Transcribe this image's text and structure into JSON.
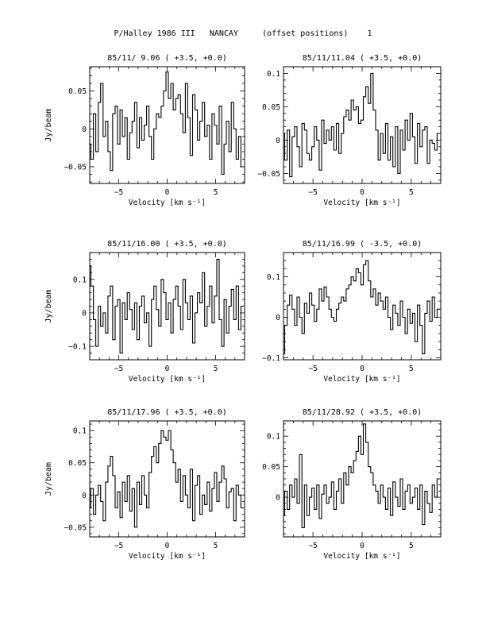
{
  "page_title": "P/Halley 1986 III   NANCAY     (offset positions)    1",
  "chart_data": [
    {
      "type": "line",
      "title": "85/11/ 9.06  ( +3.5, +0.0)",
      "xlabel": "Velocity [km s⁻¹]",
      "ylabel": "Jy/beam",
      "xlim": [
        -8,
        8
      ],
      "ylim": [
        -0.072,
        0.082
      ],
      "xticks": [
        -5,
        0,
        5
      ],
      "yticks": [
        -0.05,
        0,
        0.05
      ],
      "ytick_labels": [
        "−0.05",
        "0",
        "0.05"
      ],
      "series": [
        {
          "x": [
            -8.0,
            -7.75,
            -7.5,
            -7.25,
            -7.0,
            -6.75,
            -6.5,
            -6.25,
            -6.0,
            -5.75,
            -5.5,
            -5.25,
            -5.0,
            -4.75,
            -4.5,
            -4.25,
            -4.0,
            -3.75,
            -3.5,
            -3.25,
            -3.0,
            -2.75,
            -2.5,
            -2.25,
            -2.0,
            -1.75,
            -1.5,
            -1.25,
            -1.0,
            -0.75,
            -0.5,
            -0.25,
            0.0,
            0.25,
            0.5,
            0.75,
            1.0,
            1.25,
            1.5,
            1.75,
            2.0,
            2.25,
            2.5,
            2.75,
            3.0,
            3.25,
            3.5,
            3.75,
            4.0,
            4.25,
            4.5,
            4.75,
            5.0,
            5.25,
            5.5,
            5.75,
            6.0,
            6.25,
            6.5,
            6.75,
            7.0,
            7.25,
            7.5,
            7.75
          ],
          "y": [
            -0.02,
            -0.04,
            0.02,
            -0.03,
            0.035,
            0.06,
            -0.01,
            0.01,
            -0.03,
            -0.055,
            0.02,
            0.03,
            -0.02,
            0.025,
            -0.01,
            0.015,
            -0.04,
            -0.005,
            0.01,
            0.035,
            -0.025,
            0.015,
            -0.015,
            0.005,
            0.03,
            -0.01,
            -0.04,
            0.0,
            0.02,
            0.015,
            0.03,
            0.05,
            0.075,
            0.04,
            0.06,
            0.025,
            0.04,
            0.045,
            0.02,
            -0.005,
            0.06,
            0.015,
            -0.035,
            0.045,
            0.025,
            -0.015,
            0.01,
            0.035,
            -0.01,
            0.005,
            -0.04,
            0.02,
            0.005,
            -0.02,
            0.03,
            -0.06,
            -0.02,
            0.01,
            -0.03,
            0.035,
            0.0,
            -0.04,
            -0.01,
            -0.05
          ]
        }
      ]
    },
    {
      "type": "line",
      "title": "85/11/11.04  ( +3.5, +0.0)",
      "xlabel": "Velocity [km s⁻¹]",
      "ylabel": "",
      "xlim": [
        -8,
        8
      ],
      "ylim": [
        -0.065,
        0.11
      ],
      "xticks": [
        -5,
        0,
        5
      ],
      "yticks": [
        -0.05,
        0,
        0.05,
        0.1
      ],
      "ytick_labels": [
        "−0.05",
        "0",
        "0.05",
        "0.1"
      ],
      "series": [
        {
          "x": [
            -8.0,
            -7.75,
            -7.5,
            -7.25,
            -7.0,
            -6.75,
            -6.5,
            -6.25,
            -6.0,
            -5.75,
            -5.5,
            -5.25,
            -5.0,
            -4.75,
            -4.5,
            -4.25,
            -4.0,
            -3.75,
            -3.5,
            -3.25,
            -3.0,
            -2.75,
            -2.5,
            -2.25,
            -2.0,
            -1.75,
            -1.5,
            -1.25,
            -1.0,
            -0.75,
            -0.5,
            -0.25,
            0.0,
            0.25,
            0.5,
            0.75,
            1.0,
            1.25,
            1.5,
            1.75,
            2.0,
            2.25,
            2.5,
            2.75,
            3.0,
            3.25,
            3.5,
            3.75,
            4.0,
            4.25,
            4.5,
            4.75,
            5.0,
            5.25,
            5.5,
            5.75,
            6.0,
            6.25,
            6.5,
            6.75,
            7.0,
            7.25,
            7.5,
            7.75
          ],
          "y": [
            0.01,
            -0.03,
            0.015,
            -0.055,
            0.005,
            0.02,
            -0.01,
            -0.04,
            0.025,
            0.015,
            -0.02,
            -0.03,
            -0.01,
            0.02,
            0.0,
            -0.045,
            0.03,
            -0.005,
            0.015,
            0.0,
            0.02,
            -0.015,
            0.025,
            -0.02,
            0.01,
            0.035,
            0.045,
            0.03,
            0.06,
            0.045,
            0.05,
            0.025,
            0.03,
            0.065,
            0.08,
            0.055,
            0.1,
            0.045,
            0.015,
            -0.03,
            0.01,
            -0.02,
            0.025,
            -0.03,
            0.005,
            -0.04,
            0.02,
            -0.05,
            0.015,
            -0.015,
            0.03,
            0.0,
            0.04,
            0.005,
            -0.035,
            0.025,
            -0.01,
            0.015,
            0.02,
            -0.035,
            0.0,
            -0.005,
            -0.015,
            0.01
          ]
        }
      ]
    },
    {
      "type": "line",
      "title": "85/11/16.00  ( +3.5, +0.0)",
      "xlabel": "Velocity [km s⁻¹]",
      "ylabel": "Jy/beam",
      "xlim": [
        -8,
        8
      ],
      "ylim": [
        -0.14,
        0.18
      ],
      "xticks": [
        -5,
        0,
        5
      ],
      "yticks": [
        -0.1,
        0,
        0.1
      ],
      "ytick_labels": [
        "−0.1",
        "0",
        "0.1"
      ],
      "series": [
        {
          "x": [
            -8.0,
            -7.75,
            -7.5,
            -7.25,
            -7.0,
            -6.75,
            -6.5,
            -6.25,
            -6.0,
            -5.75,
            -5.5,
            -5.25,
            -5.0,
            -4.75,
            -4.5,
            -4.25,
            -4.0,
            -3.75,
            -3.5,
            -3.25,
            -3.0,
            -2.75,
            -2.5,
            -2.25,
            -2.0,
            -1.75,
            -1.5,
            -1.25,
            -1.0,
            -0.75,
            -0.5,
            -0.25,
            0.0,
            0.25,
            0.5,
            0.75,
            1.0,
            1.25,
            1.5,
            1.75,
            2.0,
            2.25,
            2.5,
            2.75,
            3.0,
            3.25,
            3.5,
            3.75,
            4.0,
            4.25,
            4.5,
            4.75,
            5.0,
            5.25,
            5.5,
            5.75,
            6.0,
            6.25,
            6.5,
            6.75,
            7.0,
            7.25,
            7.5,
            7.75
          ],
          "y": [
            0.14,
            0.08,
            -0.02,
            -0.1,
            0.02,
            -0.04,
            0.0,
            -0.06,
            0.05,
            0.08,
            -0.08,
            0.02,
            0.04,
            -0.12,
            0.03,
            -0.02,
            0.06,
            0.01,
            -0.05,
            0.03,
            -0.08,
            0.02,
            0.05,
            -0.03,
            0.0,
            -0.1,
            0.04,
            0.08,
            0.01,
            -0.04,
            0.1,
            0.06,
            -0.02,
            0.03,
            -0.06,
            0.04,
            0.08,
            0.02,
            -0.05,
            0.1,
            0.03,
            -0.02,
            0.05,
            -0.09,
            0.0,
            0.06,
            0.03,
            0.12,
            -0.04,
            0.02,
            0.08,
            -0.03,
            0.05,
            0.16,
            -0.02,
            -0.1,
            0.04,
            -0.06,
            0.02,
            0.07,
            -0.02,
            0.08,
            -0.05,
            0.02
          ]
        }
      ]
    },
    {
      "type": "line",
      "title": "85/11/16.99  ( -3.5, +0.0)",
      "xlabel": "Velocity [km s⁻¹]",
      "ylabel": "",
      "xlim": [
        -8,
        8
      ],
      "ylim": [
        -0.105,
        0.16
      ],
      "xticks": [
        -5,
        0,
        5
      ],
      "yticks": [
        -0.1,
        0,
        0.1
      ],
      "ytick_labels": [
        "−0.1",
        "0",
        "0.1"
      ],
      "series": [
        {
          "x": [
            -8.0,
            -7.75,
            -7.5,
            -7.25,
            -7.0,
            -6.75,
            -6.5,
            -6.25,
            -6.0,
            -5.75,
            -5.5,
            -5.25,
            -5.0,
            -4.75,
            -4.5,
            -4.25,
            -4.0,
            -3.75,
            -3.5,
            -3.25,
            -3.0,
            -2.75,
            -2.5,
            -2.25,
            -2.0,
            -1.75,
            -1.5,
            -1.25,
            -1.0,
            -0.75,
            -0.5,
            -0.25,
            0.0,
            0.25,
            0.5,
            0.75,
            1.0,
            1.25,
            1.5,
            1.75,
            2.0,
            2.25,
            2.5,
            2.75,
            3.0,
            3.25,
            3.5,
            3.75,
            4.0,
            4.25,
            4.5,
            4.75,
            5.0,
            5.25,
            5.5,
            5.75,
            6.0,
            6.25,
            6.5,
            6.75,
            7.0,
            7.25,
            7.5,
            7.75
          ],
          "y": [
            -0.09,
            -0.02,
            0.03,
            0.055,
            0.02,
            -0.02,
            0.05,
            0.0,
            -0.04,
            0.035,
            0.01,
            0.06,
            0.03,
            -0.01,
            0.02,
            0.07,
            0.04,
            0.075,
            0.05,
            0.02,
            0.0,
            -0.01,
            0.02,
            0.035,
            0.05,
            0.04,
            0.07,
            0.08,
            0.1,
            0.09,
            0.12,
            0.11,
            0.08,
            0.13,
            0.14,
            0.09,
            0.05,
            0.07,
            0.03,
            0.06,
            0.04,
            0.02,
            0.05,
            0.0,
            -0.03,
            0.03,
            0.01,
            -0.02,
            0.04,
            0.0,
            -0.04,
            0.02,
            -0.015,
            0.01,
            -0.06,
            0.03,
            -0.02,
            -0.09,
            0.01,
            0.04,
            -0.01,
            0.05,
            0.0,
            0.02
          ]
        }
      ]
    },
    {
      "type": "line",
      "title": "85/11/17.96  ( +3.5, +0.0)",
      "xlabel": "Velocity [km s⁻¹]",
      "ylabel": "Jy/beam",
      "xlim": [
        -8,
        8
      ],
      "ylim": [
        -0.065,
        0.115
      ],
      "xticks": [
        -5,
        0,
        5
      ],
      "yticks": [
        -0.05,
        0,
        0.05,
        0.1
      ],
      "ytick_labels": [
        "−0.05",
        "0",
        "0.05",
        "0.1"
      ],
      "series": [
        {
          "x": [
            -8.0,
            -7.75,
            -7.5,
            -7.25,
            -7.0,
            -6.75,
            -6.5,
            -6.25,
            -6.0,
            -5.75,
            -5.5,
            -5.25,
            -5.0,
            -4.75,
            -4.5,
            -4.25,
            -4.0,
            -3.75,
            -3.5,
            -3.25,
            -3.0,
            -2.75,
            -2.5,
            -2.25,
            -2.0,
            -1.75,
            -1.5,
            -1.25,
            -1.0,
            -0.75,
            -0.5,
            -0.25,
            0.0,
            0.25,
            0.5,
            0.75,
            1.0,
            1.25,
            1.5,
            1.75,
            2.0,
            2.25,
            2.5,
            2.75,
            3.0,
            3.25,
            3.5,
            3.75,
            4.0,
            4.25,
            4.5,
            4.75,
            5.0,
            5.25,
            5.5,
            5.75,
            6.0,
            6.25,
            6.5,
            6.75,
            7.0,
            7.25,
            7.5,
            7.75
          ],
          "y": [
            -0.02,
            0.01,
            -0.03,
            0.0,
            0.015,
            -0.01,
            -0.04,
            0.02,
            0.045,
            0.06,
            0.03,
            -0.02,
            0.005,
            -0.035,
            0.02,
            -0.01,
            0.03,
            -0.025,
            0.01,
            -0.05,
            0.02,
            -0.015,
            0.03,
            0.0,
            -0.02,
            0.035,
            0.06,
            0.075,
            0.05,
            0.08,
            0.1,
            0.09,
            0.085,
            0.1,
            0.07,
            0.05,
            0.02,
            0.04,
            -0.01,
            0.03,
            0.0,
            -0.02,
            0.04,
            -0.04,
            0.015,
            0.03,
            -0.03,
            0.0,
            -0.015,
            0.02,
            -0.025,
            0.01,
            0.035,
            -0.01,
            0.02,
            0.045,
            0.025,
            -0.02,
            0.005,
            0.01,
            -0.04,
            0.015,
            0.0,
            -0.02
          ]
        }
      ]
    },
    {
      "type": "line",
      "title": "85/11/28.92  ( +3.5, +0.0)",
      "xlabel": "Velocity [km s⁻¹]",
      "ylabel": "",
      "xlim": [
        -8,
        8
      ],
      "ylim": [
        -0.065,
        0.125
      ],
      "xticks": [
        -5,
        0,
        5
      ],
      "yticks": [
        0,
        0.05,
        0.1
      ],
      "ytick_labels": [
        "0",
        "0.05",
        "0.1"
      ],
      "series": [
        {
          "x": [
            -8.0,
            -7.75,
            -7.5,
            -7.25,
            -7.0,
            -6.75,
            -6.5,
            -6.25,
            -6.0,
            -5.75,
            -5.5,
            -5.25,
            -5.0,
            -4.75,
            -4.5,
            -4.25,
            -4.0,
            -3.75,
            -3.5,
            -3.25,
            -3.0,
            -2.75,
            -2.5,
            -2.25,
            -2.0,
            -1.75,
            -1.5,
            -1.25,
            -1.0,
            -0.75,
            -0.5,
            -0.25,
            0.0,
            0.25,
            0.5,
            0.75,
            1.0,
            1.25,
            1.5,
            1.75,
            2.0,
            2.25,
            2.5,
            2.75,
            3.0,
            3.25,
            3.5,
            3.75,
            4.0,
            4.25,
            4.5,
            4.75,
            5.0,
            5.25,
            5.5,
            5.75,
            6.0,
            6.25,
            6.5,
            6.75,
            7.0,
            7.25,
            7.5,
            7.75
          ],
          "y": [
            -0.03,
            0.01,
            -0.02,
            0.02,
            0.0,
            0.03,
            -0.01,
            0.07,
            -0.05,
            0.02,
            -0.03,
            0.0,
            0.015,
            -0.02,
            0.02,
            -0.035,
            0.005,
            0.02,
            -0.01,
            0.0,
            0.025,
            -0.02,
            0.01,
            0.03,
            -0.01,
            0.04,
            0.02,
            0.05,
            0.04,
            0.06,
            0.075,
            0.1,
            0.07,
            0.12,
            0.09,
            0.05,
            0.04,
            0.02,
            0.01,
            -0.01,
            0.02,
            0.0,
            -0.02,
            0.015,
            -0.03,
            0.025,
            0.0,
            -0.015,
            0.03,
            -0.02,
            0.01,
            0.02,
            -0.01,
            0.0,
            0.015,
            -0.02,
            0.02,
            -0.045,
            0.01,
            -0.01,
            -0.025,
            0.02,
            0.0,
            0.03
          ]
        }
      ]
    }
  ]
}
